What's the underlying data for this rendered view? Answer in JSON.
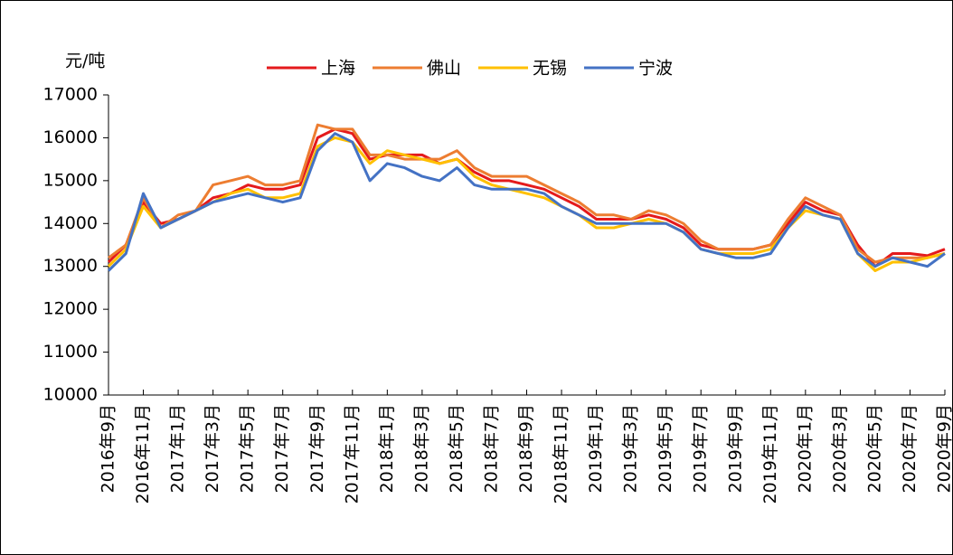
{
  "chart_data": {
    "type": "line",
    "y_label": "元/吨",
    "categories": [
      "2016年9月",
      null,
      "2016年11月",
      null,
      "2017年1月",
      null,
      "2017年3月",
      null,
      "2017年5月",
      null,
      "2017年7月",
      null,
      "2017年9月",
      null,
      "2017年11月",
      null,
      "2018年1月",
      null,
      "2018年3月",
      null,
      "2018年5月",
      null,
      "2018年7月",
      null,
      "2018年9月",
      null,
      "2018年11月",
      null,
      "2019年1月",
      null,
      "2019年3月",
      null,
      "2019年5月",
      null,
      "2019年7月",
      null,
      "2019年9月",
      null,
      "2019年11月",
      null,
      "2020年1月",
      null,
      "2020年3月",
      null,
      "2020年5月",
      null,
      "2020年7月",
      null,
      "2020年9月"
    ],
    "series": [
      {
        "name": "上海",
        "color": "#e41a1c",
        "values": [
          13100,
          13500,
          14500,
          14000,
          14100,
          14300,
          14600,
          14700,
          14900,
          14800,
          14800,
          14900,
          16000,
          16200,
          16100,
          15500,
          15600,
          15600,
          15600,
          15400,
          15500,
          15200,
          15000,
          15000,
          14900,
          14800,
          14600,
          14400,
          14100,
          14100,
          14100,
          14200,
          14100,
          13900,
          13500,
          13400,
          13400,
          13400,
          13500,
          14000,
          14500,
          14300,
          14200,
          13500,
          13000,
          13300,
          13300,
          13250,
          13400
        ]
      },
      {
        "name": "佛山",
        "color": "#ed7d31",
        "values": [
          13200,
          13500,
          14600,
          13900,
          14200,
          14300,
          14900,
          15000,
          15100,
          14900,
          14900,
          15000,
          16300,
          16200,
          16200,
          15600,
          15600,
          15500,
          15500,
          15500,
          15700,
          15300,
          15100,
          15100,
          15100,
          14900,
          14700,
          14500,
          14200,
          14200,
          14100,
          14300,
          14200,
          14000,
          13600,
          13400,
          13400,
          13400,
          13500,
          14100,
          14600,
          14400,
          14200,
          13400,
          13100,
          13200,
          13200,
          13200,
          13300
        ]
      },
      {
        "name": "无锡",
        "color": "#ffc000",
        "values": [
          13000,
          13400,
          14400,
          13900,
          14100,
          14300,
          14500,
          14700,
          14800,
          14600,
          14600,
          14700,
          15800,
          16000,
          15900,
          15400,
          15700,
          15600,
          15500,
          15400,
          15500,
          15100,
          14900,
          14800,
          14700,
          14600,
          14400,
          14200,
          13900,
          13900,
          14000,
          14100,
          14000,
          13800,
          13400,
          13300,
          13300,
          13300,
          13400,
          13900,
          14300,
          14200,
          14100,
          13300,
          12900,
          13100,
          13100,
          13200,
          13300
        ]
      },
      {
        "name": "宁波",
        "color": "#4472c4",
        "values": [
          12900,
          13300,
          14700,
          13900,
          14100,
          14300,
          14500,
          14600,
          14700,
          14600,
          14500,
          14600,
          15700,
          16100,
          15900,
          15000,
          15400,
          15300,
          15100,
          15000,
          15300,
          14900,
          14800,
          14800,
          14800,
          14700,
          14400,
          14200,
          14000,
          14000,
          14000,
          14000,
          14000,
          13800,
          13400,
          13300,
          13200,
          13200,
          13300,
          13900,
          14400,
          14200,
          14100,
          13300,
          13000,
          13200,
          13100,
          13000,
          13300
        ]
      }
    ],
    "ylim": [
      10000,
      17000
    ],
    "yticks": [
      10000,
      11000,
      12000,
      13000,
      14000,
      15000,
      16000,
      17000
    ],
    "grid": false,
    "legend": "top"
  }
}
